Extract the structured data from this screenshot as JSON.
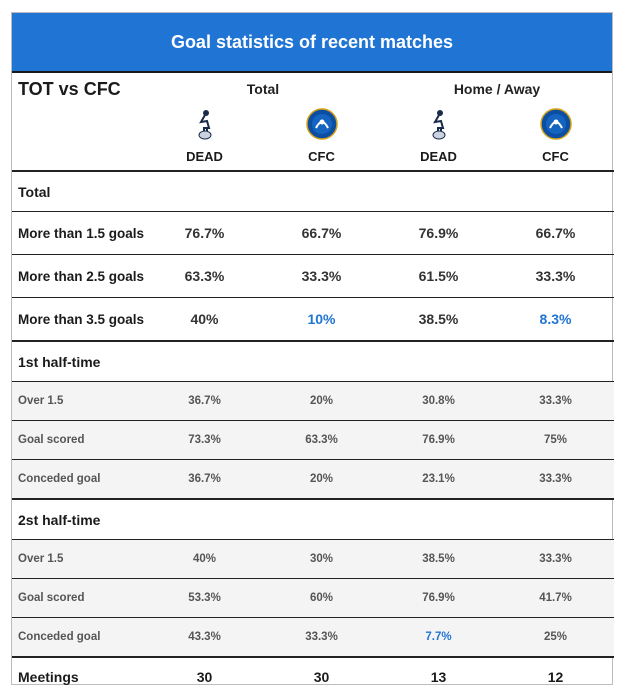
{
  "title": "Goal statistics of recent matches",
  "matchup": "TOT vs CFC",
  "groups": {
    "total": "Total",
    "home_away": "Home / Away"
  },
  "teams": [
    "DEAD",
    "CFC",
    "DEAD",
    "CFC"
  ],
  "colors": {
    "accent": "#1f74d4",
    "header_text": "#ffffff"
  },
  "icons": [
    "tottenham-crest-icon",
    "chelsea-crest-icon",
    "tottenham-crest-icon",
    "chelsea-crest-icon"
  ],
  "sections": {
    "total": {
      "label": "Total",
      "rows": [
        {
          "label": "More than 1.5 goals",
          "values": [
            "76.7%",
            "66.7%",
            "76.9%",
            "66.7%"
          ]
        },
        {
          "label": "More than 2.5 goals",
          "values": [
            "63.3%",
            "33.3%",
            "61.5%",
            "33.3%"
          ]
        },
        {
          "label": "More than 3.5 goals",
          "values": [
            "40%",
            "10%",
            "38.5%",
            "8.3%"
          ]
        }
      ]
    },
    "first_half": {
      "label": "1st half-time",
      "rows": [
        {
          "label": "Over 1.5",
          "values": [
            "36.7%",
            "20%",
            "30.8%",
            "33.3%"
          ]
        },
        {
          "label": "Goal scored",
          "values": [
            "73.3%",
            "63.3%",
            "76.9%",
            "75%"
          ]
        },
        {
          "label": "Conceded goal",
          "values": [
            "36.7%",
            "20%",
            "23.1%",
            "33.3%"
          ]
        }
      ]
    },
    "second_half": {
      "label": "2st half-time",
      "rows": [
        {
          "label": "Over 1.5",
          "values": [
            "40%",
            "30%",
            "38.5%",
            "33.3%"
          ]
        },
        {
          "label": "Goal scored",
          "values": [
            "53.3%",
            "60%",
            "76.9%",
            "41.7%"
          ]
        },
        {
          "label": "Conceded goal",
          "values": [
            "43.3%",
            "33.3%",
            "7.7%",
            "25%"
          ]
        }
      ]
    }
  },
  "meetings": {
    "label": "Meetings",
    "values": [
      "30",
      "30",
      "13",
      "12"
    ]
  }
}
